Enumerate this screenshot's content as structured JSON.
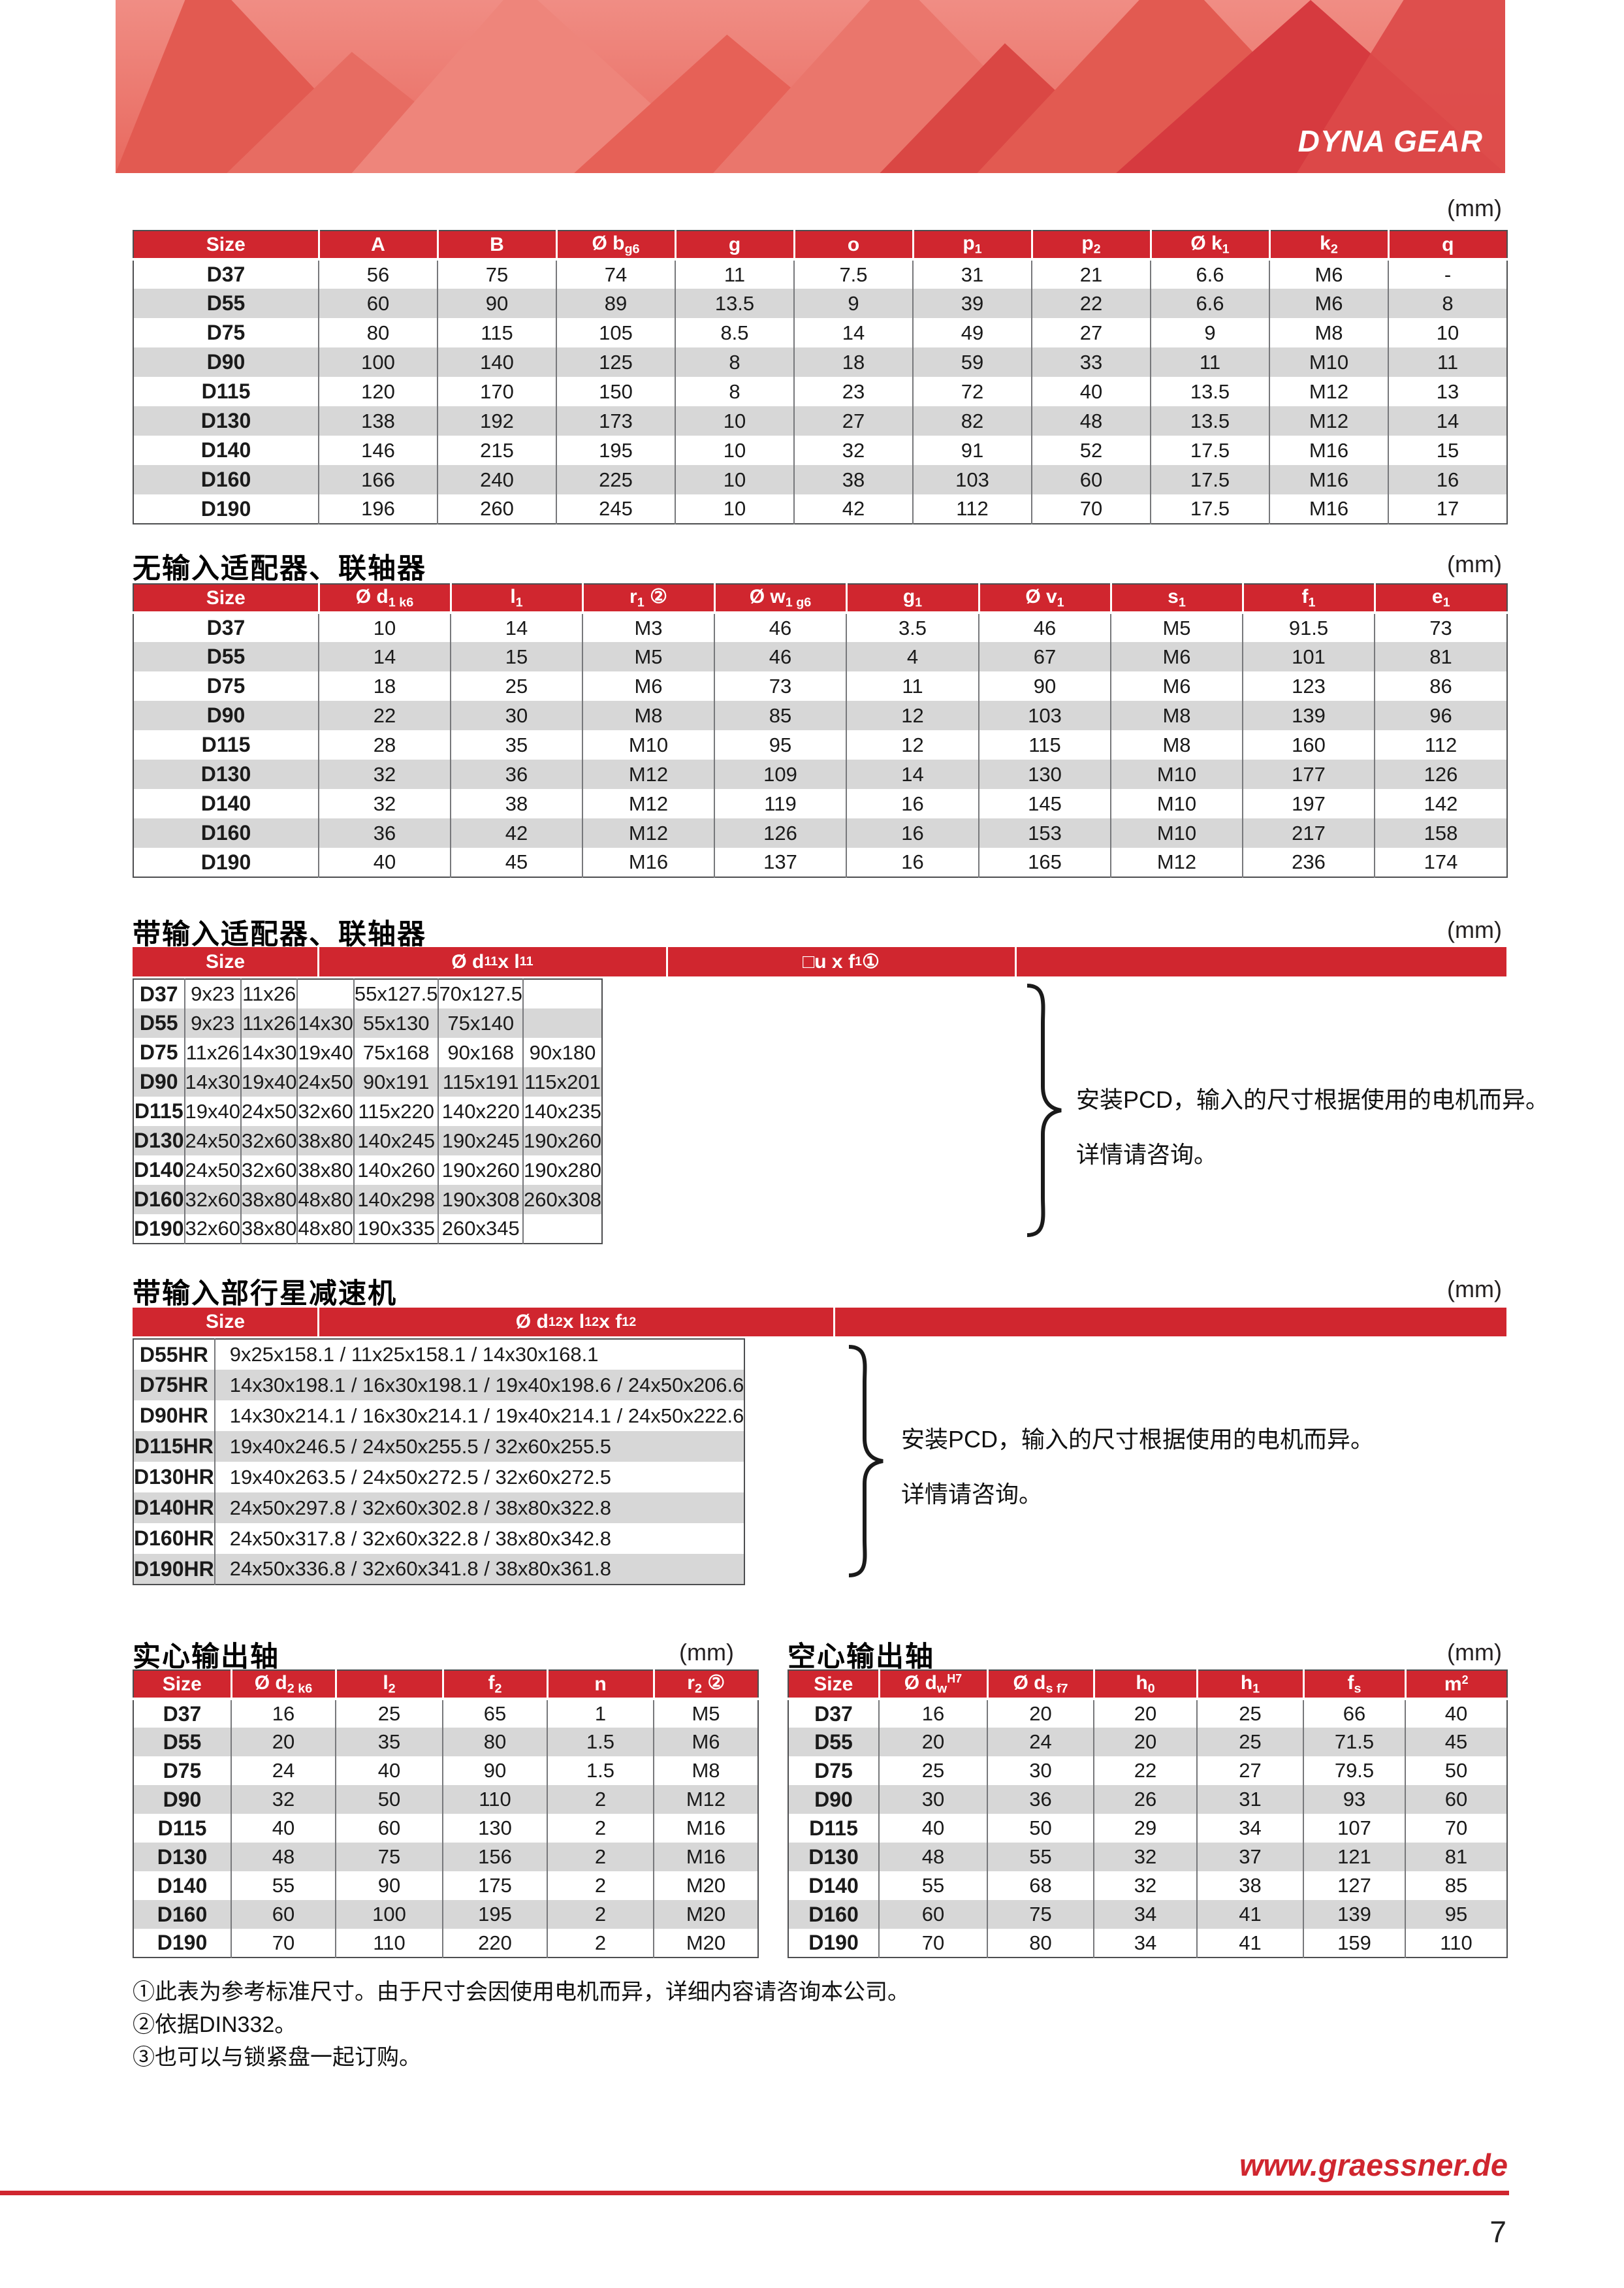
{
  "banner": {
    "brand": "DYNA GEAR"
  },
  "unit_label": "(mm)",
  "sections": {
    "no_input": "无输入适配器、联轴器",
    "with_input": "带输入适配器、联轴器",
    "planetary": "带输入部行星减速机",
    "solid_shaft": "实心输出轴",
    "hollow_shaft": "空心输出轴"
  },
  "pcd_note": {
    "line1": "安装PCD，输入的尺寸根据使用的电机而异。",
    "line2": "详情请咨询。"
  },
  "footnotes": [
    "①此表为参考标准尺寸。由于尺寸会因使用电机而异，详细内容请咨询本公司。",
    "②依据DIN332。",
    "③也可以与锁紧盘一起订购。"
  ],
  "footer": {
    "website": "www.graessner.de",
    "page_number": "7"
  },
  "colors": {
    "red": "#d0262f",
    "stripe": "#d7d7d7",
    "banner_base": "#e8695f",
    "footer_red": "#d0262f",
    "brand_text": "#ffffff"
  },
  "tables": {
    "main_dimensions": {
      "headers": [
        "Size",
        "A",
        "B",
        "Ø b_{g6}",
        "g",
        "o",
        "p_{1}",
        "p_{2}",
        "Ø k_{1}",
        "k_{2}",
        "q"
      ],
      "rows": [
        [
          "D37",
          "56",
          "75",
          "74",
          "11",
          "7.5",
          "31",
          "21",
          "6.6",
          "M6",
          "-"
        ],
        [
          "D55",
          "60",
          "90",
          "89",
          "13.5",
          "9",
          "39",
          "22",
          "6.6",
          "M6",
          "8"
        ],
        [
          "D75",
          "80",
          "115",
          "105",
          "8.5",
          "14",
          "49",
          "27",
          "9",
          "M8",
          "10"
        ],
        [
          "D90",
          "100",
          "140",
          "125",
          "8",
          "18",
          "59",
          "33",
          "11",
          "M10",
          "11"
        ],
        [
          "D115",
          "120",
          "170",
          "150",
          "8",
          "23",
          "72",
          "40",
          "13.5",
          "M12",
          "13"
        ],
        [
          "D130",
          "138",
          "192",
          "173",
          "10",
          "27",
          "82",
          "48",
          "13.5",
          "M12",
          "14"
        ],
        [
          "D140",
          "146",
          "215",
          "195",
          "10",
          "32",
          "91",
          "52",
          "17.5",
          "M16",
          "15"
        ],
        [
          "D160",
          "166",
          "240",
          "225",
          "10",
          "38",
          "103",
          "60",
          "17.5",
          "M16",
          "16"
        ],
        [
          "D190",
          "196",
          "260",
          "245",
          "10",
          "42",
          "112",
          "70",
          "17.5",
          "M16",
          "17"
        ]
      ]
    },
    "no_input_adapter": {
      "headers": [
        "Size",
        "Ø d_{1 k6}",
        "l_{1}",
        "r_{1} ②",
        "Ø w_{1 g6}",
        "g_{1}",
        "Ø v_{1}",
        "s_{1}",
        "f_{1}",
        "e_{1}"
      ],
      "rows": [
        [
          "D37",
          "10",
          "14",
          "M3",
          "46",
          "3.5",
          "46",
          "M5",
          "91.5",
          "73"
        ],
        [
          "D55",
          "14",
          "15",
          "M5",
          "46",
          "4",
          "67",
          "M6",
          "101",
          "81"
        ],
        [
          "D75",
          "18",
          "25",
          "M6",
          "73",
          "11",
          "90",
          "M6",
          "123",
          "86"
        ],
        [
          "D90",
          "22",
          "30",
          "M8",
          "85",
          "12",
          "103",
          "M8",
          "139",
          "96"
        ],
        [
          "D115",
          "28",
          "35",
          "M10",
          "95",
          "12",
          "115",
          "M8",
          "160",
          "112"
        ],
        [
          "D130",
          "32",
          "36",
          "M12",
          "109",
          "14",
          "130",
          "M10",
          "177",
          "126"
        ],
        [
          "D140",
          "32",
          "38",
          "M12",
          "119",
          "16",
          "145",
          "M10",
          "197",
          "142"
        ],
        [
          "D160",
          "36",
          "42",
          "M12",
          "126",
          "16",
          "153",
          "M10",
          "217",
          "158"
        ],
        [
          "D190",
          "40",
          "45",
          "M16",
          "137",
          "16",
          "165",
          "M12",
          "236",
          "174"
        ]
      ]
    },
    "with_input_adapter": {
      "header_groups": [
        {
          "label": "Size",
          "span": 1
        },
        {
          "label": "Ø d_{11} x l_{11}",
          "span": 3
        },
        {
          "label": "□u x f_{1} ①",
          "span": 3
        }
      ],
      "rows": [
        [
          "D37",
          "9x23",
          "11x26",
          "",
          "55x127.5",
          "70x127.5",
          ""
        ],
        [
          "D55",
          "9x23",
          "11x26",
          "14x30",
          "55x130",
          "75x140",
          ""
        ],
        [
          "D75",
          "11x26",
          "14x30",
          "19x40",
          "75x168",
          "90x168",
          "90x180"
        ],
        [
          "D90",
          "14x30",
          "19x40",
          "24x50",
          "90x191",
          "115x191",
          "115x201"
        ],
        [
          "D115",
          "19x40",
          "24x50",
          "32x60",
          "115x220",
          "140x220",
          "140x235"
        ],
        [
          "D130",
          "24x50",
          "32x60",
          "38x80",
          "140x245",
          "190x245",
          "190x260"
        ],
        [
          "D140",
          "24x50",
          "32x60",
          "38x80",
          "140x260",
          "190x260",
          "190x280"
        ],
        [
          "D160",
          "32x60",
          "38x80",
          "48x80",
          "140x298",
          "190x308",
          "260x308"
        ],
        [
          "D190",
          "32x60",
          "38x80",
          "48x80",
          "190x335",
          "260x345",
          ""
        ]
      ]
    },
    "planetary_gear": {
      "header_groups": [
        {
          "label": "Size",
          "span": 1
        },
        {
          "label": "Ø d_{12} x l_{12} x f_{12}",
          "span": 1
        }
      ],
      "rows": [
        [
          "D55HR",
          "9x25x158.1 / 11x25x158.1 / 14x30x168.1"
        ],
        [
          "D75HR",
          "14x30x198.1 / 16x30x198.1 / 19x40x198.6 / 24x50x206.6"
        ],
        [
          "D90HR",
          "14x30x214.1 / 16x30x214.1 / 19x40x214.1 / 24x50x222.6"
        ],
        [
          "D115HR",
          "19x40x246.5 / 24x50x255.5 / 32x60x255.5"
        ],
        [
          "D130HR",
          "19x40x263.5 / 24x50x272.5 / 32x60x272.5"
        ],
        [
          "D140HR",
          "24x50x297.8 / 32x60x302.8 / 38x80x322.8"
        ],
        [
          "D160HR",
          "24x50x317.8 / 32x60x322.8 / 38x80x342.8"
        ],
        [
          "D190HR",
          "24x50x336.8 / 32x60x341.8 / 38x80x361.8"
        ]
      ]
    },
    "solid_output_shaft": {
      "headers": [
        "Size",
        "Ø d_{2 k6}",
        "l_{2}",
        "f_{2}",
        "n",
        "r_{2} ②"
      ],
      "rows": [
        [
          "D37",
          "16",
          "25",
          "65",
          "1",
          "M5"
        ],
        [
          "D55",
          "20",
          "35",
          "80",
          "1.5",
          "M6"
        ],
        [
          "D75",
          "24",
          "40",
          "90",
          "1.5",
          "M8"
        ],
        [
          "D90",
          "32",
          "50",
          "110",
          "2",
          "M12"
        ],
        [
          "D115",
          "40",
          "60",
          "130",
          "2",
          "M16"
        ],
        [
          "D130",
          "48",
          "75",
          "156",
          "2",
          "M16"
        ],
        [
          "D140",
          "55",
          "90",
          "175",
          "2",
          "M20"
        ],
        [
          "D160",
          "60",
          "100",
          "195",
          "2",
          "M20"
        ],
        [
          "D190",
          "70",
          "110",
          "220",
          "2",
          "M20"
        ]
      ]
    },
    "hollow_output_shaft": {
      "headers": [
        "Size",
        "Ø d_{w}^{H7}",
        "Ø d_{s f7}",
        "h_{0}",
        "h_{1}",
        "f_{s}",
        "m^{2}"
      ],
      "rows": [
        [
          "D37",
          "16",
          "20",
          "20",
          "25",
          "66",
          "40"
        ],
        [
          "D55",
          "20",
          "24",
          "20",
          "25",
          "71.5",
          "45"
        ],
        [
          "D75",
          "25",
          "30",
          "22",
          "27",
          "79.5",
          "50"
        ],
        [
          "D90",
          "30",
          "36",
          "26",
          "31",
          "93",
          "60"
        ],
        [
          "D115",
          "40",
          "50",
          "29",
          "34",
          "107",
          "70"
        ],
        [
          "D130",
          "48",
          "55",
          "32",
          "37",
          "121",
          "81"
        ],
        [
          "D140",
          "55",
          "68",
          "32",
          "38",
          "127",
          "85"
        ],
        [
          "D160",
          "60",
          "75",
          "34",
          "41",
          "139",
          "95"
        ],
        [
          "D190",
          "70",
          "80",
          "34",
          "41",
          "159",
          "110"
        ]
      ]
    }
  }
}
